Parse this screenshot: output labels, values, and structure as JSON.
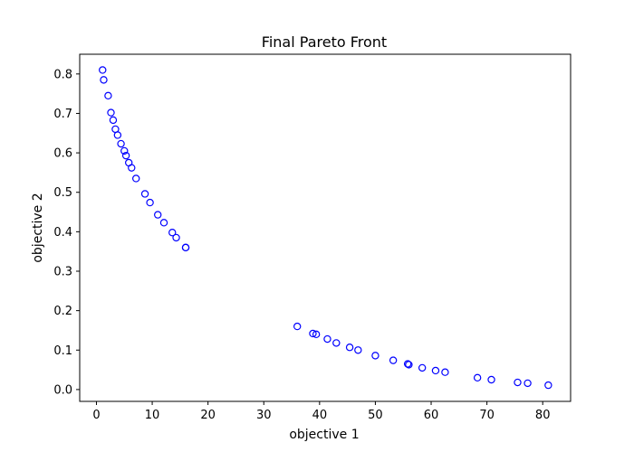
{
  "chart_data": {
    "type": "scatter",
    "title": "Final Pareto Front",
    "xlabel": "objective 1",
    "ylabel": "objective 2",
    "xlim": [
      -3,
      85
    ],
    "ylim": [
      -0.03,
      0.85
    ],
    "xticks": [
      0,
      10,
      20,
      30,
      40,
      50,
      60,
      70,
      80
    ],
    "yticks": [
      0.0,
      0.1,
      0.2,
      0.3,
      0.4,
      0.5,
      0.6,
      0.7,
      0.8
    ],
    "grid": false,
    "marker_color": "#0000ff",
    "marker": "hollow-circle",
    "series": [
      {
        "x": [
          1.1,
          1.3,
          2.1,
          2.6,
          3.0,
          3.4,
          3.8,
          4.4,
          5.0,
          5.3,
          5.8,
          6.3,
          7.1,
          8.7,
          9.6,
          11.0,
          12.1,
          13.6,
          14.3,
          16.0,
          16.0,
          36.0,
          38.8,
          39.4,
          41.4,
          43.0,
          45.4,
          46.9,
          50.0,
          53.2,
          55.8,
          56.0,
          58.4,
          60.8,
          62.5,
          68.3,
          70.8,
          75.5,
          77.3,
          81.0
        ],
        "y": [
          0.81,
          0.785,
          0.745,
          0.702,
          0.683,
          0.66,
          0.645,
          0.623,
          0.605,
          0.593,
          0.575,
          0.562,
          0.535,
          0.496,
          0.474,
          0.443,
          0.423,
          0.398,
          0.385,
          0.36,
          0.36,
          0.16,
          0.142,
          0.14,
          0.128,
          0.118,
          0.107,
          0.1,
          0.086,
          0.074,
          0.065,
          0.063,
          0.055,
          0.048,
          0.044,
          0.03,
          0.025,
          0.018,
          0.016,
          0.011
        ]
      }
    ]
  }
}
